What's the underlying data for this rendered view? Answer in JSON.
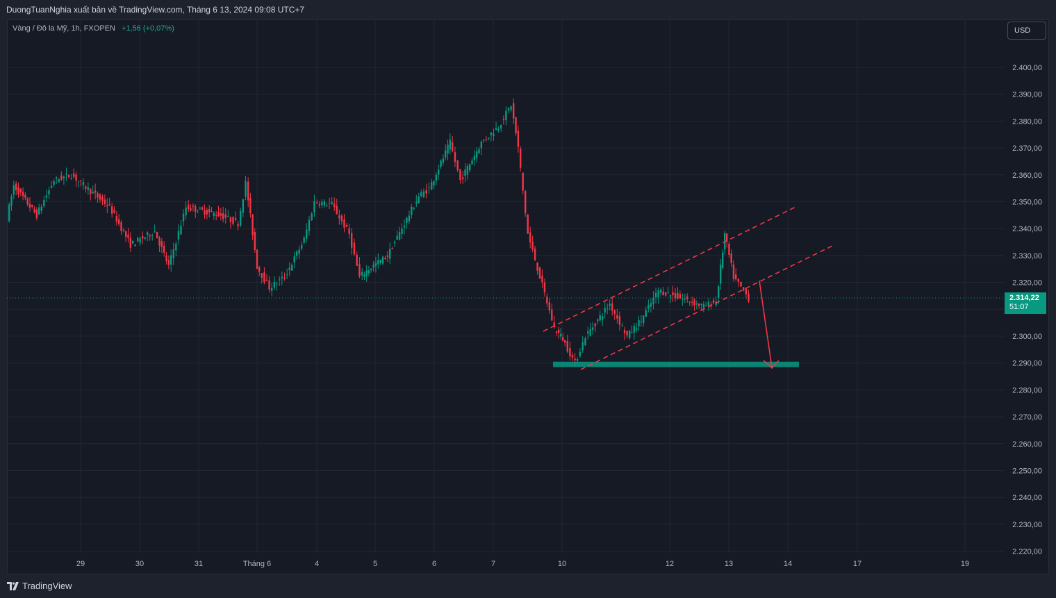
{
  "header": {
    "published_by": "DuongTuanNghia xuất bản về TradingView.com, Tháng 6 13, 2024 09:08 UTC+7"
  },
  "legend": {
    "symbol": "Vàng / Đô la Mỹ, 1h, FXOPEN",
    "change": "+1,56 (+0,07%)"
  },
  "currency_button": "USD",
  "last_price": {
    "price": "2.314,22",
    "countdown": "51:07"
  },
  "footer": {
    "brand": "TradingView"
  },
  "colors": {
    "up": "#089981",
    "down": "#f23645",
    "drawing": "#f23645",
    "support_zone": "#089981",
    "background": "#161a25"
  },
  "chart_data": {
    "type": "candlestick",
    "title": "Vàng / Đô la Mỹ, 1h, FXOPEN",
    "x_tick_labels": [
      "29",
      "30",
      "31",
      "Tháng 6",
      "4",
      "5",
      "6",
      "7",
      "10",
      "12",
      "13",
      "14",
      "17",
      "19"
    ],
    "y_tick_labels": [
      "2.400,00",
      "2.390,00",
      "2.380,00",
      "2.370,00",
      "2.360,00",
      "2.350,00",
      "2.340,00",
      "2.330,00",
      "2.320,00",
      "2.310,00",
      "2.300,00",
      "2.290,00",
      "2.280,00",
      "2.270,00",
      "2.260,00",
      "2.250,00",
      "2.240,00",
      "2.230,00",
      "2.220,00"
    ],
    "y_ticks": [
      2400,
      2390,
      2380,
      2370,
      2360,
      2350,
      2340,
      2330,
      2320,
      2310,
      2300,
      2290,
      2280,
      2270,
      2260,
      2250,
      2240,
      2230,
      2220
    ],
    "ylim": [
      2216,
      2412
    ],
    "last_price": 2314.22,
    "price_path": [
      [
        "28 May",
        2344
      ],
      [
        "28 May",
        2356
      ],
      [
        "29 May",
        2345
      ],
      [
        "29 May",
        2358
      ],
      [
        "29 May",
        2360
      ],
      [
        "30 May",
        2348
      ],
      [
        "30 May",
        2334
      ],
      [
        "30 May",
        2339
      ],
      [
        "31 May",
        2326
      ],
      [
        "31 May",
        2348
      ],
      [
        "31 May",
        2345
      ],
      [
        "31 May",
        2342
      ],
      [
        "3 Jun",
        2357
      ],
      [
        "3 Jun",
        2326
      ],
      [
        "3 Jun",
        2318
      ],
      [
        "4 Jun",
        2322
      ],
      [
        "4 Jun",
        2336
      ],
      [
        "4 Jun",
        2350
      ],
      [
        "4 Jun",
        2349
      ],
      [
        "5 Jun",
        2338
      ],
      [
        "5 Jun",
        2322
      ],
      [
        "5 Jun",
        2325
      ],
      [
        "5 Jun",
        2330
      ],
      [
        "6 Jun",
        2352
      ],
      [
        "6 Jun",
        2355
      ],
      [
        "6 Jun",
        2372
      ],
      [
        "6 Jun",
        2358
      ],
      [
        "7 Jun",
        2372
      ],
      [
        "7 Jun",
        2378
      ],
      [
        "7 Jun",
        2386
      ],
      [
        "7 Jun",
        2370
      ],
      [
        "7 Jun",
        2338
      ],
      [
        "10 Jun",
        2303
      ],
      [
        "10 Jun",
        2299
      ],
      [
        "10 Jun",
        2290
      ],
      [
        "10 Jun",
        2300
      ],
      [
        "11 Jun",
        2312
      ],
      [
        "11 Jun",
        2300
      ],
      [
        "11 Jun",
        2306
      ],
      [
        "12 Jun",
        2317
      ],
      [
        "12 Jun",
        2313
      ],
      [
        "12 Jun",
        2311
      ],
      [
        "12 Jun",
        2313
      ],
      [
        "13 Jun",
        2338
      ],
      [
        "13 Jun",
        2322
      ],
      [
        "13 Jun",
        2314.22
      ]
    ],
    "drawings": {
      "ascending_channel": true,
      "projected_target_zone": [
        2288.5,
        2290.5
      ]
    },
    "grid": true
  }
}
